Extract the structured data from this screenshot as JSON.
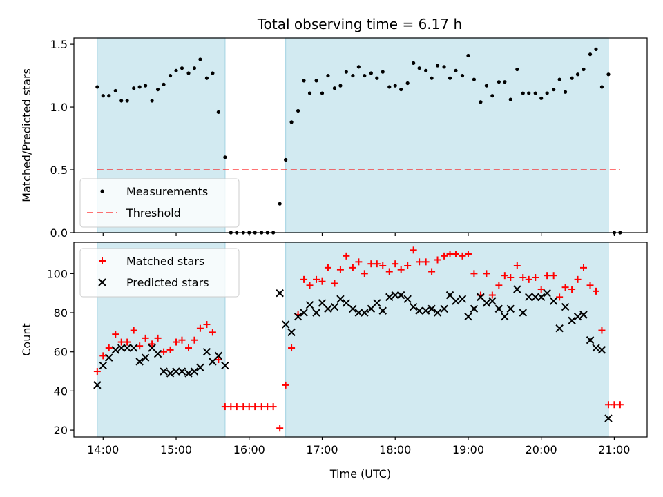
{
  "title": "Total observing time = 6.17 h",
  "colors": {
    "band": "#add8e6",
    "measurement": "#000000",
    "threshold": "#ff0000",
    "matched": "#ff0000",
    "predicted": "#000000"
  },
  "chart_data": [
    {
      "type": "scatter",
      "panel": "top",
      "ylabel": "Matched/Predicted stars",
      "xlabel": "",
      "xlim": [
        13.6,
        21.45
      ],
      "ylim": [
        0,
        1.55
      ],
      "y_ticks": [
        0.0,
        0.5,
        1.0,
        1.5
      ],
      "y_tick_labels": [
        "0.0",
        "0.5",
        "1.0",
        "1.5"
      ],
      "x_ticks": [
        14,
        15,
        16,
        17,
        18,
        19,
        20,
        21
      ],
      "shaded_intervals": [
        [
          13.92,
          15.67
        ],
        [
          16.5,
          20.92
        ]
      ],
      "legend": {
        "location": "lower left",
        "entries": [
          "Measurements",
          "Threshold"
        ]
      },
      "series": [
        {
          "name": "Measurements",
          "marker": "dot",
          "points": [
            [
              13.92,
              1.16
            ],
            [
              14.0,
              1.09
            ],
            [
              14.08,
              1.09
            ],
            [
              14.17,
              1.13
            ],
            [
              14.25,
              1.05
            ],
            [
              14.33,
              1.05
            ],
            [
              14.42,
              1.15
            ],
            [
              14.5,
              1.16
            ],
            [
              14.58,
              1.17
            ],
            [
              14.67,
              1.05
            ],
            [
              14.75,
              1.14
            ],
            [
              14.83,
              1.18
            ],
            [
              14.92,
              1.25
            ],
            [
              15.0,
              1.29
            ],
            [
              15.08,
              1.31
            ],
            [
              15.17,
              1.27
            ],
            [
              15.25,
              1.31
            ],
            [
              15.33,
              1.38
            ],
            [
              15.42,
              1.23
            ],
            [
              15.5,
              1.27
            ],
            [
              15.58,
              0.96
            ],
            [
              15.67,
              0.6
            ],
            [
              15.75,
              0.0
            ],
            [
              15.83,
              0.0
            ],
            [
              15.92,
              0.0
            ],
            [
              16.0,
              0.0
            ],
            [
              16.08,
              0.0
            ],
            [
              16.17,
              0.0
            ],
            [
              16.25,
              0.0
            ],
            [
              16.33,
              0.0
            ],
            [
              16.42,
              0.23
            ],
            [
              16.5,
              0.58
            ],
            [
              16.58,
              0.88
            ],
            [
              16.67,
              0.97
            ],
            [
              16.75,
              1.21
            ],
            [
              16.83,
              1.11
            ],
            [
              16.92,
              1.21
            ],
            [
              17.0,
              1.11
            ],
            [
              17.08,
              1.25
            ],
            [
              17.17,
              1.15
            ],
            [
              17.25,
              1.17
            ],
            [
              17.33,
              1.28
            ],
            [
              17.42,
              1.25
            ],
            [
              17.5,
              1.32
            ],
            [
              17.58,
              1.25
            ],
            [
              17.67,
              1.27
            ],
            [
              17.75,
              1.23
            ],
            [
              17.83,
              1.28
            ],
            [
              17.92,
              1.16
            ],
            [
              18.0,
              1.17
            ],
            [
              18.08,
              1.14
            ],
            [
              18.17,
              1.19
            ],
            [
              18.25,
              1.35
            ],
            [
              18.33,
              1.31
            ],
            [
              18.42,
              1.29
            ],
            [
              18.5,
              1.23
            ],
            [
              18.58,
              1.33
            ],
            [
              18.67,
              1.32
            ],
            [
              18.75,
              1.23
            ],
            [
              18.83,
              1.29
            ],
            [
              18.92,
              1.25
            ],
            [
              19.0,
              1.41
            ],
            [
              19.08,
              1.22
            ],
            [
              19.17,
              1.04
            ],
            [
              19.25,
              1.17
            ],
            [
              19.33,
              1.09
            ],
            [
              19.42,
              1.2
            ],
            [
              19.5,
              1.2
            ],
            [
              19.58,
              1.06
            ],
            [
              19.67,
              1.3
            ],
            [
              19.75,
              1.11
            ],
            [
              19.83,
              1.11
            ],
            [
              19.92,
              1.11
            ],
            [
              20.0,
              1.07
            ],
            [
              20.08,
              1.11
            ],
            [
              20.17,
              1.14
            ],
            [
              20.25,
              1.22
            ],
            [
              20.33,
              1.12
            ],
            [
              20.42,
              1.23
            ],
            [
              20.5,
              1.26
            ],
            [
              20.58,
              1.3
            ],
            [
              20.67,
              1.42
            ],
            [
              20.75,
              1.46
            ],
            [
              20.83,
              1.16
            ],
            [
              20.92,
              1.26
            ],
            [
              21.0,
              0.0
            ],
            [
              21.08,
              0.0
            ]
          ]
        },
        {
          "name": "Threshold",
          "marker": "dashed-line",
          "points": [
            [
              13.92,
              0.5
            ],
            [
              21.08,
              0.5
            ]
          ]
        }
      ]
    },
    {
      "type": "scatter",
      "panel": "bottom",
      "ylabel": "Count",
      "xlabel": "Time (UTC)",
      "xlim": [
        13.6,
        21.45
      ],
      "ylim": [
        16.5,
        116
      ],
      "y_ticks": [
        20,
        40,
        60,
        80,
        100
      ],
      "y_tick_labels": [
        "20",
        "40",
        "60",
        "80",
        "100"
      ],
      "x_ticks": [
        14,
        15,
        16,
        17,
        18,
        19,
        20,
        21
      ],
      "x_tick_labels": [
        "14:00",
        "15:00",
        "16:00",
        "17:00",
        "18:00",
        "19:00",
        "20:00",
        "21:00"
      ],
      "shaded_intervals": [
        [
          13.92,
          15.67
        ],
        [
          16.5,
          20.92
        ]
      ],
      "legend": {
        "location": "upper left",
        "entries": [
          "Matched stars",
          "Predicted stars"
        ]
      },
      "series": [
        {
          "name": "Matched stars",
          "marker": "plus",
          "points": [
            [
              13.92,
              50
            ],
            [
              14.0,
              58
            ],
            [
              14.08,
              62
            ],
            [
              14.17,
              69
            ],
            [
              14.25,
              65
            ],
            [
              14.33,
              65
            ],
            [
              14.42,
              71
            ],
            [
              14.5,
              63
            ],
            [
              14.58,
              67
            ],
            [
              14.67,
              64
            ],
            [
              14.75,
              67
            ],
            [
              14.83,
              60
            ],
            [
              14.92,
              61
            ],
            [
              15.0,
              65
            ],
            [
              15.08,
              66
            ],
            [
              15.17,
              62
            ],
            [
              15.25,
              66
            ],
            [
              15.33,
              72
            ],
            [
              15.42,
              74
            ],
            [
              15.5,
              70
            ],
            [
              15.58,
              56
            ],
            [
              15.67,
              32
            ],
            [
              15.75,
              32
            ],
            [
              15.83,
              32
            ],
            [
              15.92,
              32
            ],
            [
              16.0,
              32
            ],
            [
              16.08,
              32
            ],
            [
              16.17,
              32
            ],
            [
              16.25,
              32
            ],
            [
              16.33,
              32
            ],
            [
              16.42,
              21
            ],
            [
              16.5,
              43
            ],
            [
              16.58,
              62
            ],
            [
              16.67,
              79
            ],
            [
              16.75,
              97
            ],
            [
              16.83,
              94
            ],
            [
              16.92,
              97
            ],
            [
              17.0,
              96
            ],
            [
              17.08,
              103
            ],
            [
              17.17,
              95
            ],
            [
              17.25,
              102
            ],
            [
              17.33,
              109
            ],
            [
              17.42,
              103
            ],
            [
              17.5,
              106
            ],
            [
              17.58,
              100
            ],
            [
              17.67,
              105
            ],
            [
              17.75,
              105
            ],
            [
              17.83,
              104
            ],
            [
              17.92,
              101
            ],
            [
              18.0,
              105
            ],
            [
              18.08,
              102
            ],
            [
              18.17,
              104
            ],
            [
              18.25,
              112
            ],
            [
              18.33,
              106
            ],
            [
              18.42,
              106
            ],
            [
              18.5,
              101
            ],
            [
              18.58,
              107
            ],
            [
              18.67,
              109
            ],
            [
              18.75,
              110
            ],
            [
              18.83,
              110
            ],
            [
              18.92,
              109
            ],
            [
              19.0,
              110
            ],
            [
              19.08,
              100
            ],
            [
              19.17,
              89
            ],
            [
              19.25,
              100
            ],
            [
              19.33,
              89
            ],
            [
              19.42,
              94
            ],
            [
              19.5,
              99
            ],
            [
              19.58,
              98
            ],
            [
              19.67,
              104
            ],
            [
              19.75,
              98
            ],
            [
              19.83,
              97
            ],
            [
              19.92,
              98
            ],
            [
              20.0,
              92
            ],
            [
              20.08,
              99
            ],
            [
              20.17,
              99
            ],
            [
              20.25,
              88
            ],
            [
              20.33,
              93
            ],
            [
              20.42,
              92
            ],
            [
              20.5,
              97
            ],
            [
              20.58,
              103
            ],
            [
              20.67,
              94
            ],
            [
              20.75,
              91
            ],
            [
              20.83,
              71
            ],
            [
              20.92,
              33
            ],
            [
              21.0,
              33
            ],
            [
              21.08,
              33
            ]
          ]
        },
        {
          "name": "Predicted stars",
          "marker": "x",
          "points": [
            [
              13.92,
              43
            ],
            [
              14.0,
              53
            ],
            [
              14.08,
              57
            ],
            [
              14.17,
              61
            ],
            [
              14.25,
              62
            ],
            [
              14.33,
              62
            ],
            [
              14.42,
              62
            ],
            [
              14.5,
              55
            ],
            [
              14.58,
              57
            ],
            [
              14.67,
              62
            ],
            [
              14.75,
              59
            ],
            [
              14.83,
              50
            ],
            [
              14.92,
              49
            ],
            [
              15.0,
              50
            ],
            [
              15.08,
              50
            ],
            [
              15.17,
              49
            ],
            [
              15.25,
              50
            ],
            [
              15.33,
              52
            ],
            [
              15.42,
              60
            ],
            [
              15.5,
              55
            ],
            [
              15.58,
              58
            ],
            [
              15.67,
              53
            ],
            [
              16.42,
              90
            ],
            [
              16.5,
              74
            ],
            [
              16.58,
              70
            ],
            [
              16.67,
              78
            ],
            [
              16.75,
              80
            ],
            [
              16.83,
              84
            ],
            [
              16.92,
              80
            ],
            [
              17.0,
              85
            ],
            [
              17.08,
              82
            ],
            [
              17.17,
              83
            ],
            [
              17.25,
              87
            ],
            [
              17.33,
              85
            ],
            [
              17.42,
              82
            ],
            [
              17.5,
              80
            ],
            [
              17.58,
              80
            ],
            [
              17.67,
              82
            ],
            [
              17.75,
              85
            ],
            [
              17.83,
              81
            ],
            [
              17.92,
              88
            ],
            [
              18.0,
              89
            ],
            [
              18.08,
              89
            ],
            [
              18.17,
              87
            ],
            [
              18.25,
              83
            ],
            [
              18.33,
              81
            ],
            [
              18.42,
              81
            ],
            [
              18.5,
              82
            ],
            [
              18.58,
              80
            ],
            [
              18.67,
              82
            ],
            [
              18.75,
              89
            ],
            [
              18.83,
              86
            ],
            [
              18.92,
              87
            ],
            [
              19.0,
              78
            ],
            [
              19.08,
              82
            ],
            [
              19.17,
              88
            ],
            [
              19.25,
              85
            ],
            [
              19.33,
              86
            ],
            [
              19.42,
              82
            ],
            [
              19.5,
              78
            ],
            [
              19.58,
              82
            ],
            [
              19.67,
              92
            ],
            [
              19.75,
              80
            ],
            [
              19.83,
              88
            ],
            [
              19.92,
              88
            ],
            [
              20.0,
              88
            ],
            [
              20.08,
              90
            ],
            [
              20.17,
              86
            ],
            [
              20.25,
              72
            ],
            [
              20.33,
              83
            ],
            [
              20.42,
              76
            ],
            [
              20.5,
              78
            ],
            [
              20.58,
              79
            ],
            [
              20.67,
              66
            ],
            [
              20.75,
              62
            ],
            [
              20.83,
              61
            ],
            [
              20.92,
              26
            ]
          ]
        }
      ]
    }
  ]
}
